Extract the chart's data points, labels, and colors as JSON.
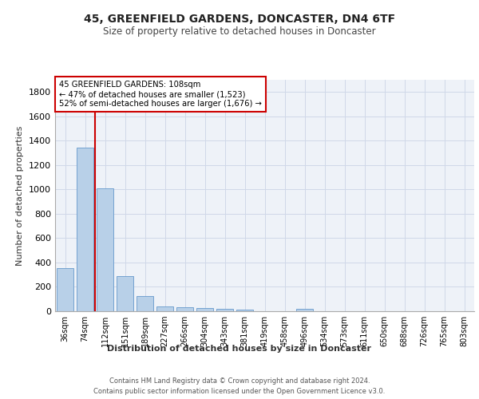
{
  "title1": "45, GREENFIELD GARDENS, DONCASTER, DN4 6TF",
  "title2": "Size of property relative to detached houses in Doncaster",
  "xlabel": "Distribution of detached houses by size in Doncaster",
  "ylabel": "Number of detached properties",
  "bar_labels": [
    "36sqm",
    "74sqm",
    "112sqm",
    "151sqm",
    "189sqm",
    "227sqm",
    "266sqm",
    "304sqm",
    "343sqm",
    "381sqm",
    "419sqm",
    "458sqm",
    "496sqm",
    "534sqm",
    "573sqm",
    "611sqm",
    "650sqm",
    "688sqm",
    "726sqm",
    "765sqm",
    "803sqm"
  ],
  "bar_values": [
    355,
    1345,
    1010,
    290,
    125,
    42,
    35,
    25,
    20,
    15,
    0,
    0,
    20,
    0,
    0,
    0,
    0,
    0,
    0,
    0,
    0
  ],
  "bar_color": "#b8d0e8",
  "bar_edgecolor": "#6699cc",
  "ylim": [
    0,
    1900
  ],
  "yticks": [
    0,
    200,
    400,
    600,
    800,
    1000,
    1200,
    1400,
    1600,
    1800
  ],
  "property_line_color": "#cc0000",
  "annotation_title": "45 GREENFIELD GARDENS: 108sqm",
  "annotation_line1": "← 47% of detached houses are smaller (1,523)",
  "annotation_line2": "52% of semi-detached houses are larger (1,676) →",
  "annotation_box_color": "#cc0000",
  "footer1": "Contains HM Land Registry data © Crown copyright and database right 2024.",
  "footer2": "Contains public sector information licensed under the Open Government Licence v3.0.",
  "bg_color": "#ffffff",
  "plot_bg_color": "#eef2f8",
  "grid_color": "#d0d8e8"
}
